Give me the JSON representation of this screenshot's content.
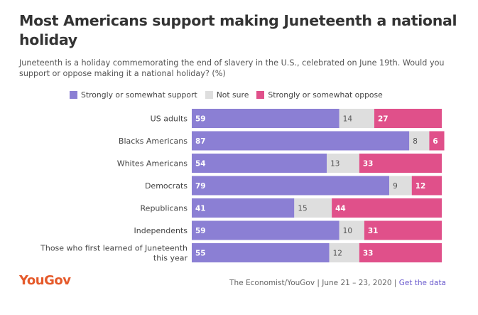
{
  "title": "Most Americans support making Juneteenth a national holiday",
  "subtitle": "Juneteenth is a holiday commemorating the end of slavery in the U.S., celebrated on June 19th. Would you support or oppose making it a national holiday? (%)",
  "legend": [
    {
      "label": "Strongly or somewhat support",
      "color": "#8b7fd4"
    },
    {
      "label": "Not sure",
      "color": "#dedede"
    },
    {
      "label": "Strongly or somewhat oppose",
      "color": "#e0508a"
    }
  ],
  "chart_data": {
    "type": "bar",
    "orientation": "horizontal",
    "stacked": true,
    "categories": [
      "US adults",
      "Blacks Americans",
      "Whites Americans",
      "Democrats",
      "Republicans",
      "Independents",
      "Those who first learned of Juneteenth this year"
    ],
    "series": [
      {
        "name": "Strongly or somewhat support",
        "color": "#8b7fd4",
        "values": [
          59,
          87,
          54,
          79,
          41,
          59,
          55
        ]
      },
      {
        "name": "Not sure",
        "color": "#dedede",
        "values": [
          14,
          8,
          13,
          9,
          15,
          10,
          12
        ]
      },
      {
        "name": "Strongly or somewhat oppose",
        "color": "#e0508a",
        "values": [
          27,
          6,
          33,
          12,
          44,
          31,
          33
        ]
      }
    ],
    "xlim": [
      0,
      100
    ],
    "legend_position": "top"
  },
  "footer": {
    "brand": "YouGov",
    "source": "The Economist/YouGov | June 21 – 23, 2020 | ",
    "link": "Get the data"
  }
}
